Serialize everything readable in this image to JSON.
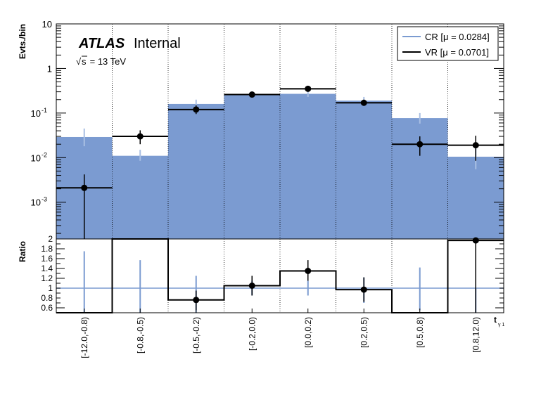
{
  "chart_data": [
    {
      "type": "bar",
      "panel": "main",
      "ylabel": "Evts./bin",
      "yscale": "log",
      "ylim": [
        0.00015,
        10
      ],
      "y_ticks": [
        {
          "value": 0.001,
          "label": "10",
          "exp": "-3"
        },
        {
          "value": 0.01,
          "label": "10",
          "exp": "-2"
        },
        {
          "value": 0.1,
          "label": "10",
          "exp": "-1"
        },
        {
          "value": 1,
          "label": "1",
          "exp": ""
        },
        {
          "value": 10,
          "label": "10",
          "exp": ""
        }
      ],
      "categories": [
        "[-12.0,-0.8)",
        "[-0.8,-0.5)",
        "[-0.5,-0.2)",
        "[-0.2,0.0)",
        "[0.0,0.2)",
        "[0.2,0.5)",
        "[0.5,0.8)",
        "[0.8,12.0)"
      ],
      "series": [
        {
          "name": "CR [μ = 0.0284]",
          "style": "filled-histogram",
          "color": "#7b9bd1",
          "values": [
            0.029,
            0.011,
            0.16,
            0.26,
            0.27,
            0.19,
            0.077,
            0.0105
          ],
          "error_low": [
            0.018,
            0.0085,
            0.12,
            0.22,
            0.23,
            0.155,
            0.058,
            0.0055
          ],
          "error_high": [
            0.045,
            0.015,
            0.2,
            0.3,
            0.31,
            0.23,
            0.1,
            0.016
          ]
        },
        {
          "name": "VR [μ = 0.0701]",
          "style": "points-with-errors",
          "color": "#000000",
          "values": [
            0.0021,
            0.03,
            0.12,
            0.26,
            0.35,
            0.17,
            0.02,
            0.019
          ],
          "error_low": [
            0.00015,
            0.02,
            0.095,
            0.235,
            0.315,
            0.145,
            0.011,
            0.0085
          ],
          "error_high": [
            0.0042,
            0.041,
            0.15,
            0.285,
            0.385,
            0.2,
            0.03,
            0.031
          ]
        }
      ],
      "annotations": {
        "experiment": "ATLAS",
        "status": "Internal",
        "energy_sqrt": "s",
        "energy_rest": " = 13 TeV"
      },
      "legend": {
        "placement": "top-right"
      },
      "grid": {
        "x": true,
        "y": false
      }
    },
    {
      "type": "bar",
      "panel": "ratio",
      "ylabel": "Ratio",
      "ylim": [
        0.5,
        2.0
      ],
      "y_ticks": [
        "0.6",
        "0.8",
        "1",
        "1.2",
        "1.4",
        "1.6",
        "1.8",
        "2"
      ],
      "reference_line": 1.0,
      "xlabel_main": "t",
      "xlabel_sub": "γ 1",
      "categories": [
        "[-12.0,-0.8)",
        "[-0.8,-0.5)",
        "[-0.5,-0.2)",
        "[-0.2,0.0)",
        "[0.0,0.2)",
        "[0.2,0.5)",
        "[0.5,0.8)",
        "[0.8,12.0)"
      ],
      "values": [
        0.5,
        2.0,
        0.76,
        1.05,
        1.35,
        0.97,
        0.5,
        1.97
      ],
      "error_low": [
        null,
        null,
        0.55,
        0.85,
        1.15,
        0.72,
        null,
        null
      ],
      "error_high": [
        null,
        null,
        0.95,
        1.25,
        1.57,
        1.22,
        null,
        null
      ],
      "point_visible": [
        false,
        false,
        true,
        true,
        true,
        true,
        false,
        true
      ],
      "cr_error_low": [
        0.5,
        0.5,
        0.5,
        0.85,
        0.85,
        0.7,
        0.55,
        0.5
      ],
      "cr_error_high": [
        1.75,
        1.57,
        1.25,
        1.15,
        1.15,
        1.22,
        1.42,
        1.0
      ]
    }
  ]
}
